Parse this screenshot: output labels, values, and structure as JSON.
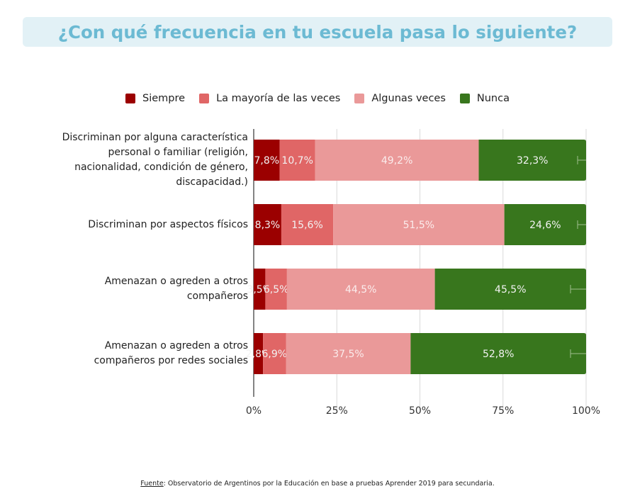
{
  "title": "¿Con qué frecuencia en tu escuela pasa lo siguiente?",
  "chart_data": {
    "type": "bar",
    "orientation": "horizontal",
    "stacked": true,
    "title": "¿Con qué frecuencia en tu escuela pasa lo siguiente?",
    "xlabel": "",
    "ylabel": "",
    "xlim": [
      0,
      100
    ],
    "x_ticks": [
      "0%",
      "25%",
      "50%",
      "75%",
      "100%"
    ],
    "grid": true,
    "legend_position": "top",
    "categories": [
      "Discriminan por alguna característica personal o familiar (religión, nacionalidad, condición de género, discapacidad.)",
      "Discriminan por aspectos físicos",
      "Amenazan o agreden a otros compañeros",
      "Amenazan o agreden a otros compañeros por redes sociales"
    ],
    "series": [
      {
        "name": "Siempre",
        "color": "#9b0000",
        "values": [
          7.8,
          8.3,
          3.5,
          2.8
        ],
        "labels": [
          "7,8%",
          "8,3%",
          "3,5%",
          "2,8%"
        ]
      },
      {
        "name": "La mayoría de las veces",
        "color": "#e06666",
        "values": [
          10.7,
          15.6,
          6.5,
          6.9
        ],
        "labels": [
          "10,7%",
          "15,6%",
          "6,5%",
          "6,9%"
        ]
      },
      {
        "name": "Algunas veces",
        "color": "#ea9999",
        "values": [
          49.2,
          51.5,
          44.5,
          37.5
        ],
        "labels": [
          "49,2%",
          "51,5%",
          "44,5%",
          "37,5%"
        ]
      },
      {
        "name": "Nunca",
        "color": "#38761d",
        "values": [
          32.3,
          24.6,
          45.5,
          52.8
        ],
        "labels": [
          "32,3%",
          "24,6%",
          "45,5%",
          "52,8%"
        ]
      }
    ]
  },
  "category_lines": [
    [
      "Discriminan por alguna característica",
      "personal o familiar (religión,",
      "nacionalidad, condición de género,",
      "discapacidad.)"
    ],
    [
      "Discriminan por aspectos físicos"
    ],
    [
      "Amenazan o agreden a otros",
      "compañeros"
    ],
    [
      "Amenazan o agreden a otros",
      "compañeros por redes sociales"
    ]
  ],
  "source": {
    "label": "Fuente",
    "text": ": Observatorio de Argentinos por la Educación en base a pruebas Aprender 2019 para secundaria."
  }
}
